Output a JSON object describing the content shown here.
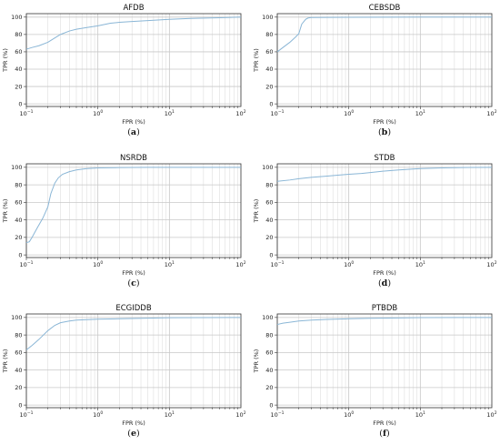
{
  "chart_data": [
    {
      "type": "line",
      "title": "AFDB",
      "caption_letter": "a",
      "xlabel": "FPR (%)",
      "ylabel": "TPR (%)",
      "xscale": "log",
      "xlim": [
        0.1,
        100
      ],
      "ylim": [
        -3,
        104
      ],
      "xticks": [
        {
          "base": "10",
          "exp": "−1",
          "value": 0.1
        },
        {
          "base": "10",
          "exp": "0",
          "value": 1
        },
        {
          "base": "10",
          "exp": "1",
          "value": 10
        },
        {
          "base": "10",
          "exp": "2",
          "value": 100
        }
      ],
      "yticks": [
        0,
        20,
        40,
        60,
        80,
        100
      ],
      "grid": true,
      "line_color": "#8ab6d6",
      "series": [
        {
          "x": [
            0.1,
            0.12,
            0.15,
            0.2,
            0.25,
            0.3,
            0.4,
            0.5,
            0.7,
            1,
            1.5,
            2,
            3,
            5,
            10,
            20,
            50,
            100
          ],
          "y": [
            63,
            65,
            67,
            71,
            76,
            80,
            84,
            86,
            88,
            90,
            93,
            94,
            95,
            96,
            97.5,
            98.5,
            99.3,
            100
          ]
        }
      ]
    },
    {
      "type": "line",
      "title": "CEBSDB",
      "caption_letter": "b",
      "xlabel": "FPR (%)",
      "ylabel": "TPR (%)",
      "xscale": "log",
      "xlim": [
        0.1,
        100
      ],
      "ylim": [
        -3,
        104
      ],
      "xticks": [
        {
          "base": "10",
          "exp": "−1",
          "value": 0.1
        },
        {
          "base": "10",
          "exp": "0",
          "value": 1
        },
        {
          "base": "10",
          "exp": "1",
          "value": 10
        },
        {
          "base": "10",
          "exp": "2",
          "value": 100
        }
      ],
      "yticks": [
        0,
        20,
        40,
        60,
        80,
        100
      ],
      "grid": true,
      "line_color": "#8ab6d6",
      "series": [
        {
          "x": [
            0.1,
            0.12,
            0.15,
            0.18,
            0.2,
            0.22,
            0.25,
            0.27,
            0.3,
            1,
            10,
            100
          ],
          "y": [
            60,
            65,
            71,
            77,
            81,
            92,
            97.5,
            99,
            99.5,
            99.8,
            100,
            100
          ]
        }
      ]
    },
    {
      "type": "line",
      "title": "NSRDB",
      "caption_letter": "c",
      "xlabel": "FPR (%)",
      "ylabel": "TPR (%)",
      "xscale": "log",
      "xlim": [
        0.1,
        100
      ],
      "ylim": [
        -3,
        104
      ],
      "xticks": [
        {
          "base": "10",
          "exp": "−1",
          "value": 0.1
        },
        {
          "base": "10",
          "exp": "0",
          "value": 1
        },
        {
          "base": "10",
          "exp": "1",
          "value": 10
        },
        {
          "base": "10",
          "exp": "2",
          "value": 100
        }
      ],
      "yticks": [
        0,
        20,
        40,
        60,
        80,
        100
      ],
      "grid": true,
      "line_color": "#8ab6d6",
      "series": [
        {
          "x": [
            0.1,
            0.11,
            0.12,
            0.14,
            0.17,
            0.2,
            0.22,
            0.25,
            0.28,
            0.32,
            0.4,
            0.5,
            0.7,
            1,
            2,
            5,
            10,
            100
          ],
          "y": [
            14,
            15,
            20,
            30,
            42,
            55,
            70,
            82,
            88,
            92,
            95,
            97,
            98.5,
            99.3,
            99.7,
            100,
            100,
            100
          ]
        }
      ]
    },
    {
      "type": "line",
      "title": "STDB",
      "caption_letter": "d",
      "xlabel": "FPR (%)",
      "ylabel": "TPR (%)",
      "xscale": "log",
      "xlim": [
        0.1,
        100
      ],
      "ylim": [
        -3,
        104
      ],
      "xticks": [
        {
          "base": "10",
          "exp": "−1",
          "value": 0.1
        },
        {
          "base": "10",
          "exp": "0",
          "value": 1
        },
        {
          "base": "10",
          "exp": "1",
          "value": 10
        },
        {
          "base": "10",
          "exp": "2",
          "value": 100
        }
      ],
      "yticks": [
        0,
        20,
        40,
        60,
        80,
        100
      ],
      "grid": true,
      "line_color": "#8ab6d6",
      "series": [
        {
          "x": [
            0.1,
            0.15,
            0.2,
            0.3,
            0.5,
            0.7,
            1,
            1.5,
            2,
            3,
            5,
            10,
            20,
            50,
            100
          ],
          "y": [
            84,
            85.5,
            87,
            88.5,
            90,
            91,
            92,
            93,
            94,
            95.5,
            97,
            98.5,
            99.3,
            99.8,
            100
          ]
        }
      ]
    },
    {
      "type": "line",
      "title": "ECGIDDB",
      "caption_letter": "e",
      "xlabel": "FPR (%)",
      "ylabel": "TPR (%)",
      "xscale": "log",
      "xlim": [
        0.1,
        100
      ],
      "ylim": [
        -3,
        104
      ],
      "xticks": [
        {
          "base": "10",
          "exp": "−1",
          "value": 0.1
        },
        {
          "base": "10",
          "exp": "0",
          "value": 1
        },
        {
          "base": "10",
          "exp": "1",
          "value": 10
        },
        {
          "base": "10",
          "exp": "2",
          "value": 100
        }
      ],
      "yticks": [
        0,
        20,
        40,
        60,
        80,
        100
      ],
      "grid": true,
      "line_color": "#8ab6d6",
      "series": [
        {
          "x": [
            0.1,
            0.12,
            0.15,
            0.2,
            0.25,
            0.3,
            0.4,
            0.5,
            0.7,
            1,
            2,
            5,
            10,
            100
          ],
          "y": [
            63,
            68,
            75,
            85,
            91,
            94,
            96,
            97,
            97.5,
            98,
            98.5,
            99.2,
            99.7,
            100
          ]
        }
      ]
    },
    {
      "type": "line",
      "title": "PTBDB",
      "caption_letter": "f",
      "xlabel": "FPR (%)",
      "ylabel": "TPR (%)",
      "xscale": "log",
      "xlim": [
        0.1,
        100
      ],
      "ylim": [
        -3,
        104
      ],
      "xticks": [
        {
          "base": "10",
          "exp": "−1",
          "value": 0.1
        },
        {
          "base": "10",
          "exp": "0",
          "value": 1
        },
        {
          "base": "10",
          "exp": "1",
          "value": 10
        },
        {
          "base": "10",
          "exp": "2",
          "value": 100
        }
      ],
      "yticks": [
        0,
        20,
        40,
        60,
        80,
        100
      ],
      "grid": true,
      "line_color": "#8ab6d6",
      "series": [
        {
          "x": [
            0.1,
            0.12,
            0.15,
            0.2,
            0.3,
            0.5,
            1,
            2,
            5,
            10,
            100
          ],
          "y": [
            92,
            93.5,
            94.5,
            96,
            97,
            97.8,
            98.5,
            99,
            99.5,
            99.8,
            100
          ]
        }
      ]
    }
  ]
}
